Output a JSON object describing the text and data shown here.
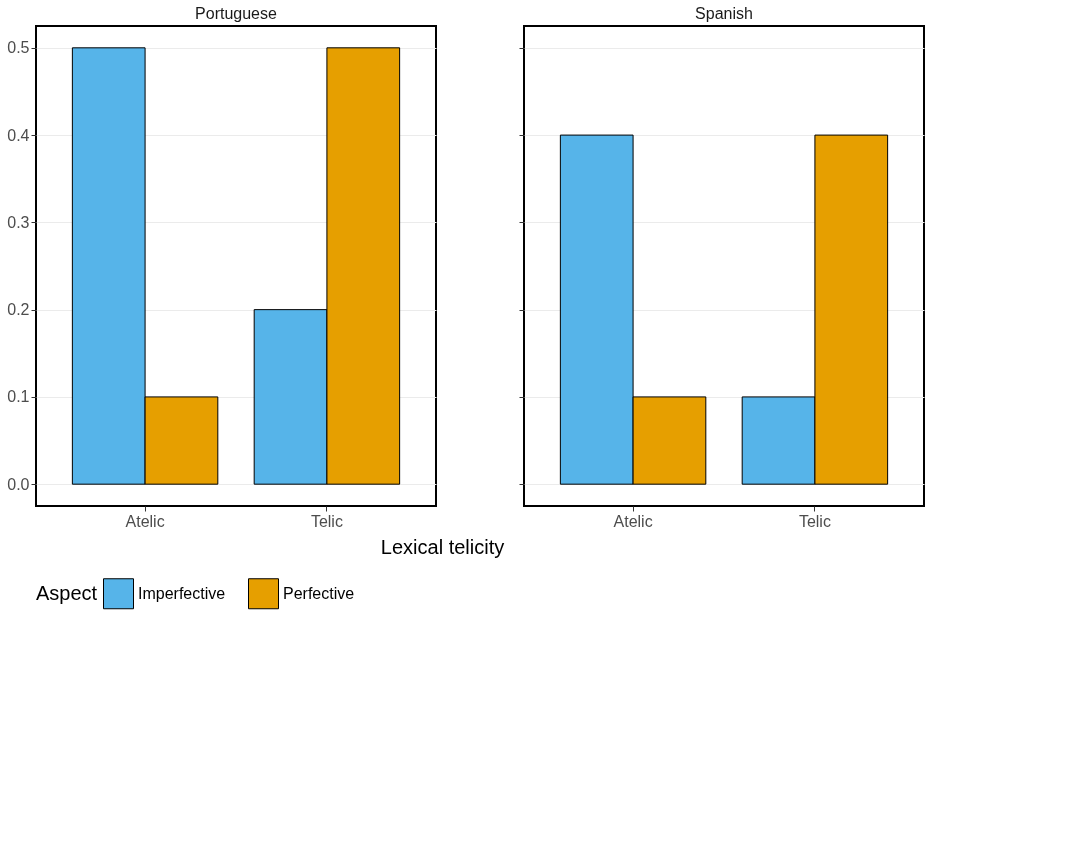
{
  "chart_data": [
    {
      "type": "bar",
      "title": "Portuguese",
      "xlabel": "Lexical telicity",
      "legend_title": "Aspect",
      "legend": "bottom",
      "grid": "y",
      "categories": [
        "Atelic",
        "Telic"
      ],
      "ylim": [
        -0.025,
        0.525
      ],
      "yticks": [
        {
          "value": 0,
          "label": "0.0"
        },
        0.1,
        0.2,
        0.3,
        0.4,
        0.5
      ],
      "series": [
        {
          "name": "Imperfective",
          "color": "#56b4e9",
          "values": [
            0.5,
            0.2
          ]
        },
        {
          "name": "Perfective",
          "color": "#e69f00",
          "values": [
            0.1,
            0.5
          ]
        }
      ]
    },
    {
      "type": "bar",
      "title": "Spanish",
      "grid": "y",
      "tick_labels": "x",
      "categories": [
        "Atelic",
        "Telic"
      ],
      "ylim": [
        -0.025,
        0.525
      ],
      "yticks": [
        0,
        0.1,
        0.2,
        0.3,
        0.4,
        0.5
      ],
      "series": [
        {
          "name": "Imperfective",
          "color": "#56b4e9",
          "values": [
            0.4,
            0.1
          ]
        },
        {
          "name": "Perfective",
          "color": "#e69f00",
          "values": [
            0.1,
            0.4
          ]
        }
      ]
    }
  ]
}
